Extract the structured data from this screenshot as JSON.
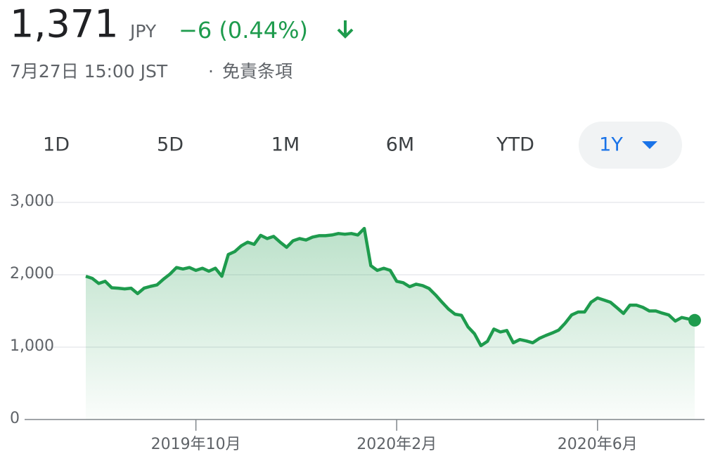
{
  "header": {
    "price": "1,371",
    "currency": "JPY",
    "change": "−6 (0.44%)",
    "timestamp": "7月27日 15:00 JST",
    "separator": "·",
    "disclaimer": "免責条項"
  },
  "ranges": [
    "1D",
    "5D",
    "1M",
    "6M",
    "YTD",
    "1Y"
  ],
  "chart_data": {
    "type": "line",
    "color": "#1e9b4d",
    "values": [
      1980,
      1950,
      1880,
      1910,
      1820,
      1815,
      1805,
      1815,
      1740,
      1815,
      1840,
      1860,
      1940,
      2010,
      2100,
      2080,
      2100,
      2060,
      2090,
      2050,
      2090,
      1980,
      2280,
      2320,
      2400,
      2450,
      2420,
      2545,
      2500,
      2530,
      2450,
      2380,
      2470,
      2500,
      2480,
      2520,
      2540,
      2540,
      2550,
      2570,
      2560,
      2570,
      2550,
      2640,
      2125,
      2060,
      2090,
      2060,
      1910,
      1890,
      1835,
      1870,
      1850,
      1810,
      1720,
      1620,
      1525,
      1455,
      1440,
      1280,
      1185,
      1020,
      1080,
      1250,
      1210,
      1230,
      1060,
      1105,
      1085,
      1060,
      1120,
      1160,
      1195,
      1235,
      1330,
      1445,
      1485,
      1485,
      1620,
      1680,
      1650,
      1620,
      1545,
      1465,
      1580,
      1580,
      1550,
      1500,
      1500,
      1470,
      1445,
      1360,
      1410,
      1390,
      1371
    ],
    "xlim": [
      0,
      94
    ],
    "xticks": [
      {
        "value": 17,
        "label": "2019年10月"
      },
      {
        "value": 48,
        "label": "2020年2月"
      },
      {
        "value": 79,
        "label": "2020年6月"
      }
    ],
    "ylim": [
      0,
      3000
    ],
    "yticks": [
      0,
      {
        "value": 1000,
        "label": "1,000"
      },
      {
        "value": 2000,
        "label": "2,000"
      },
      {
        "value": 3000,
        "label": "3,000"
      }
    ],
    "grid": true
  }
}
